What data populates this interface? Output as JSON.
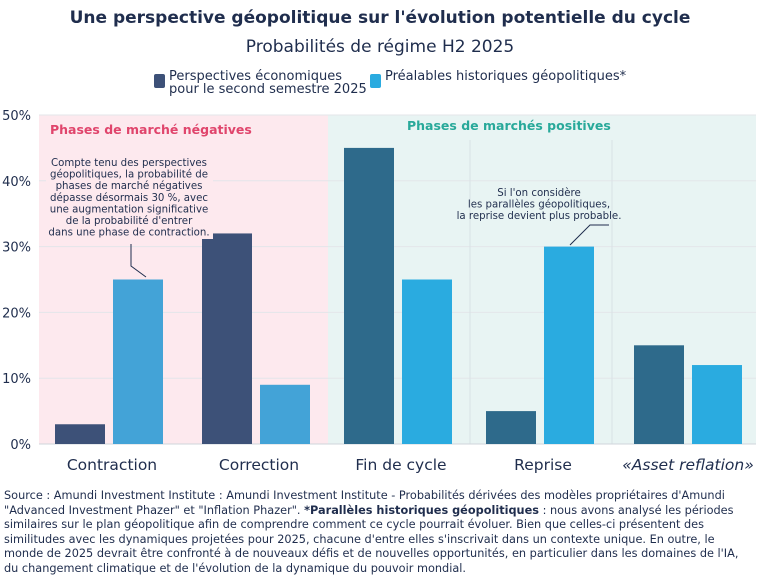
{
  "chart_data": {
    "type": "bar",
    "title": "Une perspective géopolitique sur l'évolution potentielle du cycle",
    "subtitle": "Probabilités de régime H2 2025",
    "categories": [
      "Contraction",
      "Correction",
      "Fin de cycle",
      "Reprise",
      "«Asset reflation»"
    ],
    "series": [
      {
        "name": "Perspectives économiques\npour le second semestre 2025",
        "values": [
          3,
          32,
          45,
          5,
          15
        ],
        "colors": [
          "#3d5178",
          "#3d5178",
          "#2e6a8b",
          "#2e6a8b",
          "#2e6a8b"
        ]
      },
      {
        "name": "Préalables historiques géopolitiques*",
        "values": [
          25,
          9,
          25,
          30,
          12
        ],
        "colors": [
          "#43a3d7",
          "#43a3d7",
          "#2aabe0",
          "#2aabe0",
          "#2aabe0"
        ]
      }
    ],
    "ylim": [
      0,
      50
    ],
    "yticks": [
      "0%",
      "10%",
      "20%",
      "30%",
      "40%",
      "50%"
    ],
    "regions": [
      {
        "label": "Phases de marché négatives",
        "color": "#fde9ee",
        "label_color": "#e0456c"
      },
      {
        "label": "Phases de marchés positives",
        "color": "#e8f4f3",
        "label_color": "#28a99a"
      }
    ],
    "annotations": [
      {
        "text": "Compte tenu des perspectives\ngéopolitiques, la probabilité de\nphases de marché négatives\ndépasse désormais 30 %, avec\nune augmentation significative\nde la probabilité d'entrer\ndans une phase de contraction."
      },
      {
        "text": "Si l'on considère\nles parallèles géopolitiques,\nla reprise devient plus probable."
      }
    ]
  },
  "legend": {
    "s1": "Perspectives économiques\npour le second semestre 2025",
    "s2": "Préalables historiques géopolitiques*"
  },
  "source": {
    "part1": "Source : Amundi Investment Institute : Amundi Investment Institute - Probabilités dérivées des modèles propriétaires d'Amundi \"Advanced Investment Phazer\" et \"Inflation Phazer\". ",
    "bold": "*Parallèles historiques géopolitiques",
    "part2": " : nous avons analysé les périodes similaires sur le plan géopolitique afin de comprendre comment ce cycle pourrait évoluer. Bien que celles-ci présentent des similitudes avec les dynamiques projetées pour 2025, chacune d'entre elles s'inscrivait dans un contexte unique. En outre, le monde de 2025 devrait être confronté à de nouveaux défis et de nouvelles opportunités, en particulier dans les domaines de l'IA, du changement climatique et de l'évolution de la dynamique du pouvoir mondial."
  }
}
